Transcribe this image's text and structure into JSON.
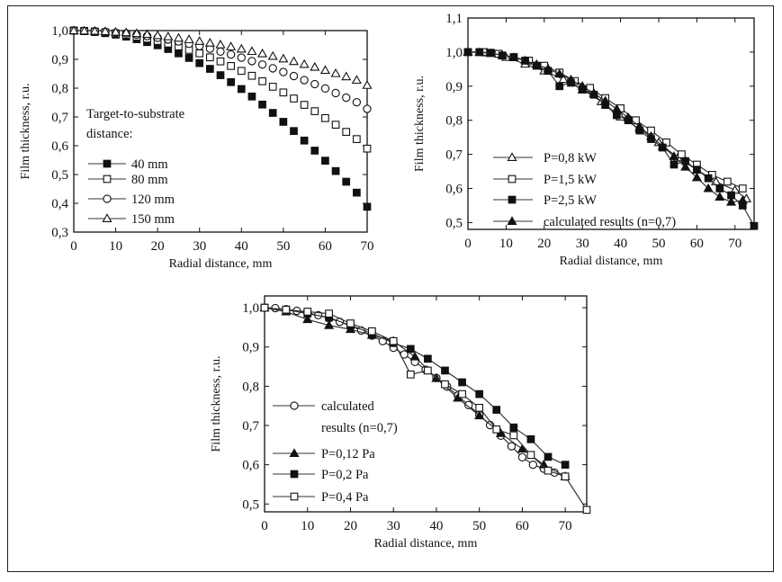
{
  "chart_data": [
    {
      "id": "p1",
      "type": "scatter",
      "xlabel": "Radial distance, mm",
      "ylabel": "Film thickness, r.u.",
      "xlim": [
        0,
        70
      ],
      "ylim": [
        0.3,
        1.0
      ],
      "xticks": [
        0,
        10,
        20,
        30,
        40,
        50,
        60,
        70
      ],
      "yticks": [
        0.3,
        0.4,
        0.5,
        0.6,
        0.7,
        0.8,
        0.9,
        1.0
      ],
      "tick_labels_x": [
        "0",
        "10",
        "20",
        "30",
        "40",
        "50",
        "60",
        "70"
      ],
      "tick_labels_y": [
        "0,3",
        "0,4",
        "0,5",
        "0,6",
        "0,7",
        "0,8",
        "0,9",
        "1,0"
      ],
      "legend_title": [
        "Target-to-substrate",
        "distance:"
      ],
      "legend_position": "lower-left",
      "series": [
        {
          "name": "40 mm",
          "marker": "square-filled",
          "x": [
            0,
            2.5,
            5,
            7.5,
            10,
            12.5,
            15,
            17.5,
            20,
            22.5,
            25,
            27.5,
            30,
            32.5,
            35,
            37.5,
            40,
            42.5,
            45,
            47.5,
            50,
            52.5,
            55,
            57.5,
            60,
            62.5,
            65,
            67.5,
            70
          ],
          "y": [
            1.0,
            0.998,
            0.995,
            0.991,
            0.986,
            0.979,
            0.97,
            0.96,
            0.949,
            0.936,
            0.921,
            0.905,
            0.887,
            0.867,
            0.845,
            0.821,
            0.797,
            0.771,
            0.743,
            0.714,
            0.683,
            0.651,
            0.618,
            0.583,
            0.548,
            0.512,
            0.475,
            0.437,
            0.388
          ]
        },
        {
          "name": "80 mm",
          "marker": "square-open",
          "x": [
            0,
            2.5,
            5,
            7.5,
            10,
            12.5,
            15,
            17.5,
            20,
            22.5,
            25,
            27.5,
            30,
            32.5,
            35,
            37.5,
            40,
            42.5,
            45,
            47.5,
            50,
            52.5,
            55,
            57.5,
            60,
            62.5,
            65,
            67.5,
            70
          ],
          "y": [
            1.0,
            0.999,
            0.997,
            0.994,
            0.99,
            0.985,
            0.979,
            0.972,
            0.964,
            0.955,
            0.945,
            0.933,
            0.921,
            0.907,
            0.893,
            0.877,
            0.86,
            0.843,
            0.824,
            0.805,
            0.785,
            0.764,
            0.742,
            0.72,
            0.696,
            0.673,
            0.648,
            0.623,
            0.59
          ]
        },
        {
          "name": "120 mm",
          "marker": "circle-open",
          "x": [
            0,
            2.5,
            5,
            7.5,
            10,
            12.5,
            15,
            17.5,
            20,
            22.5,
            25,
            27.5,
            30,
            32.5,
            35,
            37.5,
            40,
            42.5,
            45,
            47.5,
            50,
            52.5,
            55,
            57.5,
            60,
            62.5,
            65,
            67.5,
            70
          ],
          "y": [
            1.0,
            0.999,
            0.998,
            0.996,
            0.993,
            0.99,
            0.986,
            0.981,
            0.975,
            0.969,
            0.962,
            0.954,
            0.946,
            0.937,
            0.927,
            0.917,
            0.906,
            0.894,
            0.882,
            0.869,
            0.856,
            0.842,
            0.828,
            0.814,
            0.799,
            0.783,
            0.767,
            0.751,
            0.728
          ]
        },
        {
          "name": "150 mm",
          "marker": "triangle-open",
          "x": [
            0,
            2.5,
            5,
            7.5,
            10,
            12.5,
            15,
            17.5,
            20,
            22.5,
            25,
            27.5,
            30,
            32.5,
            35,
            37.5,
            40,
            42.5,
            45,
            47.5,
            50,
            52.5,
            55,
            57.5,
            60,
            62.5,
            65,
            67.5,
            70
          ],
          "y": [
            1.0,
            0.999,
            0.998,
            0.997,
            0.995,
            0.993,
            0.99,
            0.987,
            0.983,
            0.979,
            0.974,
            0.969,
            0.963,
            0.957,
            0.951,
            0.944,
            0.936,
            0.928,
            0.92,
            0.911,
            0.902,
            0.893,
            0.883,
            0.873,
            0.862,
            0.851,
            0.84,
            0.828,
            0.81
          ]
        }
      ]
    },
    {
      "id": "p2",
      "type": "scatter",
      "xlabel": "Radial distance, mm",
      "ylabel": "Film thickness, r.u.",
      "xlim": [
        0,
        75
      ],
      "ylim": [
        0.48,
        1.1
      ],
      "xticks": [
        0,
        10,
        20,
        30,
        40,
        50,
        60,
        70
      ],
      "yticks": [
        0.5,
        0.6,
        0.7,
        0.8,
        0.9,
        1.0,
        1.1
      ],
      "tick_labels_x": [
        "0",
        "10",
        "20",
        "30",
        "40",
        "50",
        "60",
        "70"
      ],
      "tick_labels_y": [
        "0,5",
        "0,6",
        "0,7",
        "0,8",
        "0,9",
        "1,0",
        "1,1"
      ],
      "legend_position": "lower-left",
      "series": [
        {
          "name": "P=0,8 kW",
          "marker": "triangle-open",
          "connect": true,
          "x": [
            0,
            5,
            10,
            15,
            20,
            25,
            30,
            35,
            40,
            45,
            50,
            55,
            60,
            65,
            70,
            73
          ],
          "y": [
            1.0,
            0.998,
            0.985,
            0.965,
            0.945,
            0.92,
            0.89,
            0.855,
            0.81,
            0.775,
            0.735,
            0.69,
            0.655,
            0.62,
            0.595,
            0.57
          ]
        },
        {
          "name": "P=1,5 kW",
          "marker": "square-open",
          "connect": true,
          "x": [
            0,
            4,
            8,
            12,
            16,
            20,
            24,
            28,
            32,
            36,
            40,
            44,
            48,
            52,
            56,
            60,
            64,
            68,
            72
          ],
          "y": [
            1.0,
            1.0,
            0.995,
            0.985,
            0.975,
            0.96,
            0.94,
            0.915,
            0.895,
            0.865,
            0.835,
            0.8,
            0.77,
            0.735,
            0.7,
            0.67,
            0.64,
            0.62,
            0.6
          ]
        },
        {
          "name": "P=2,5 kW",
          "marker": "square-filled",
          "connect": true,
          "x": [
            0,
            3,
            6,
            9,
            12,
            15,
            18,
            21,
            24,
            27,
            30,
            33,
            36,
            39,
            42,
            45,
            48,
            51,
            54,
            57,
            60,
            63,
            66,
            69,
            72,
            75
          ],
          "y": [
            1.0,
            1.0,
            0.998,
            0.99,
            0.985,
            0.975,
            0.96,
            0.945,
            0.9,
            0.91,
            0.89,
            0.875,
            0.845,
            0.815,
            0.8,
            0.77,
            0.745,
            0.72,
            0.67,
            0.68,
            0.655,
            0.63,
            0.6,
            0.58,
            0.55,
            0.49
          ]
        },
        {
          "name": "calculated results (n=0,7)",
          "marker": "triangle-filled",
          "connect": true,
          "x": [
            0,
            3,
            6,
            9,
            12,
            15,
            18,
            21,
            24,
            27,
            30,
            33,
            36,
            39,
            42,
            45,
            48,
            51,
            54,
            57,
            60,
            63,
            66,
            69,
            72
          ],
          "y": [
            1.0,
            0.999,
            0.996,
            0.991,
            0.984,
            0.975,
            0.964,
            0.951,
            0.936,
            0.919,
            0.9,
            0.879,
            0.857,
            0.833,
            0.808,
            0.781,
            0.753,
            0.724,
            0.694,
            0.663,
            0.632,
            0.6,
            0.575,
            0.56,
            0.565
          ]
        }
      ]
    },
    {
      "id": "p3",
      "type": "scatter",
      "xlabel": "Radial distance, mm",
      "ylabel": "Film thickness, r.u.",
      "xlim": [
        0,
        75
      ],
      "ylim": [
        0.48,
        1.03
      ],
      "xticks": [
        0,
        10,
        20,
        30,
        40,
        50,
        60,
        70
      ],
      "yticks": [
        0.5,
        0.6,
        0.7,
        0.8,
        0.9,
        1.0
      ],
      "tick_labels_x": [
        "0",
        "10",
        "20",
        "30",
        "40",
        "50",
        "60",
        "70"
      ],
      "tick_labels_y": [
        "0,5",
        "0,6",
        "0,7",
        "0,8",
        "0,9",
        "1,0"
      ],
      "legend_position": "lower-left",
      "series": [
        {
          "name": "calculated results (n=0,7)",
          "legend_lines": [
            "calculated",
            "results (n=0,7)"
          ],
          "marker": "circle-open",
          "connect": true,
          "x": [
            0,
            2.5,
            5,
            7.5,
            10,
            12.5,
            15,
            17.5,
            20,
            22.5,
            25,
            27.5,
            30,
            32.5,
            35,
            37.5,
            40,
            42.5,
            45,
            47.5,
            50,
            52.5,
            55,
            57.5,
            60,
            62.5,
            65,
            67.5,
            70
          ],
          "y": [
            1.0,
            0.999,
            0.996,
            0.992,
            0.987,
            0.981,
            0.973,
            0.964,
            0.954,
            0.942,
            0.929,
            0.915,
            0.898,
            0.881,
            0.862,
            0.842,
            0.821,
            0.799,
            0.776,
            0.752,
            0.727,
            0.701,
            0.674,
            0.647,
            0.619,
            0.6,
            0.59,
            0.58,
            0.57
          ]
        },
        {
          "name": "P=0,12 Pa",
          "marker": "triangle-filled",
          "connect": true,
          "x": [
            0,
            5,
            10,
            15,
            20,
            25,
            30,
            35,
            40,
            45,
            50,
            55,
            60,
            65,
            70
          ],
          "y": [
            1.0,
            0.99,
            0.97,
            0.955,
            0.945,
            0.93,
            0.915,
            0.875,
            0.82,
            0.77,
            0.725,
            0.68,
            0.64,
            0.6,
            0.57
          ]
        },
        {
          "name": "P=0,2 Pa",
          "marker": "square-filled",
          "connect": true,
          "x": [
            0,
            5,
            10,
            15,
            20,
            25,
            30,
            34,
            38,
            42,
            46,
            50,
            54,
            58,
            62,
            66,
            70
          ],
          "y": [
            1.0,
            0.995,
            0.985,
            0.975,
            0.955,
            0.935,
            0.91,
            0.895,
            0.87,
            0.84,
            0.81,
            0.78,
            0.74,
            0.695,
            0.665,
            0.62,
            0.6
          ]
        },
        {
          "name": "P=0,4 Pa",
          "marker": "square-open",
          "connect": true,
          "x": [
            0,
            5,
            10,
            15,
            20,
            25,
            30,
            34,
            38,
            42,
            46,
            50,
            54,
            58,
            62,
            66,
            70,
            75
          ],
          "y": [
            1.0,
            0.995,
            0.99,
            0.985,
            0.96,
            0.94,
            0.915,
            0.83,
            0.84,
            0.805,
            0.78,
            0.745,
            0.69,
            0.675,
            0.625,
            0.585,
            0.57,
            0.485
          ]
        }
      ]
    }
  ]
}
